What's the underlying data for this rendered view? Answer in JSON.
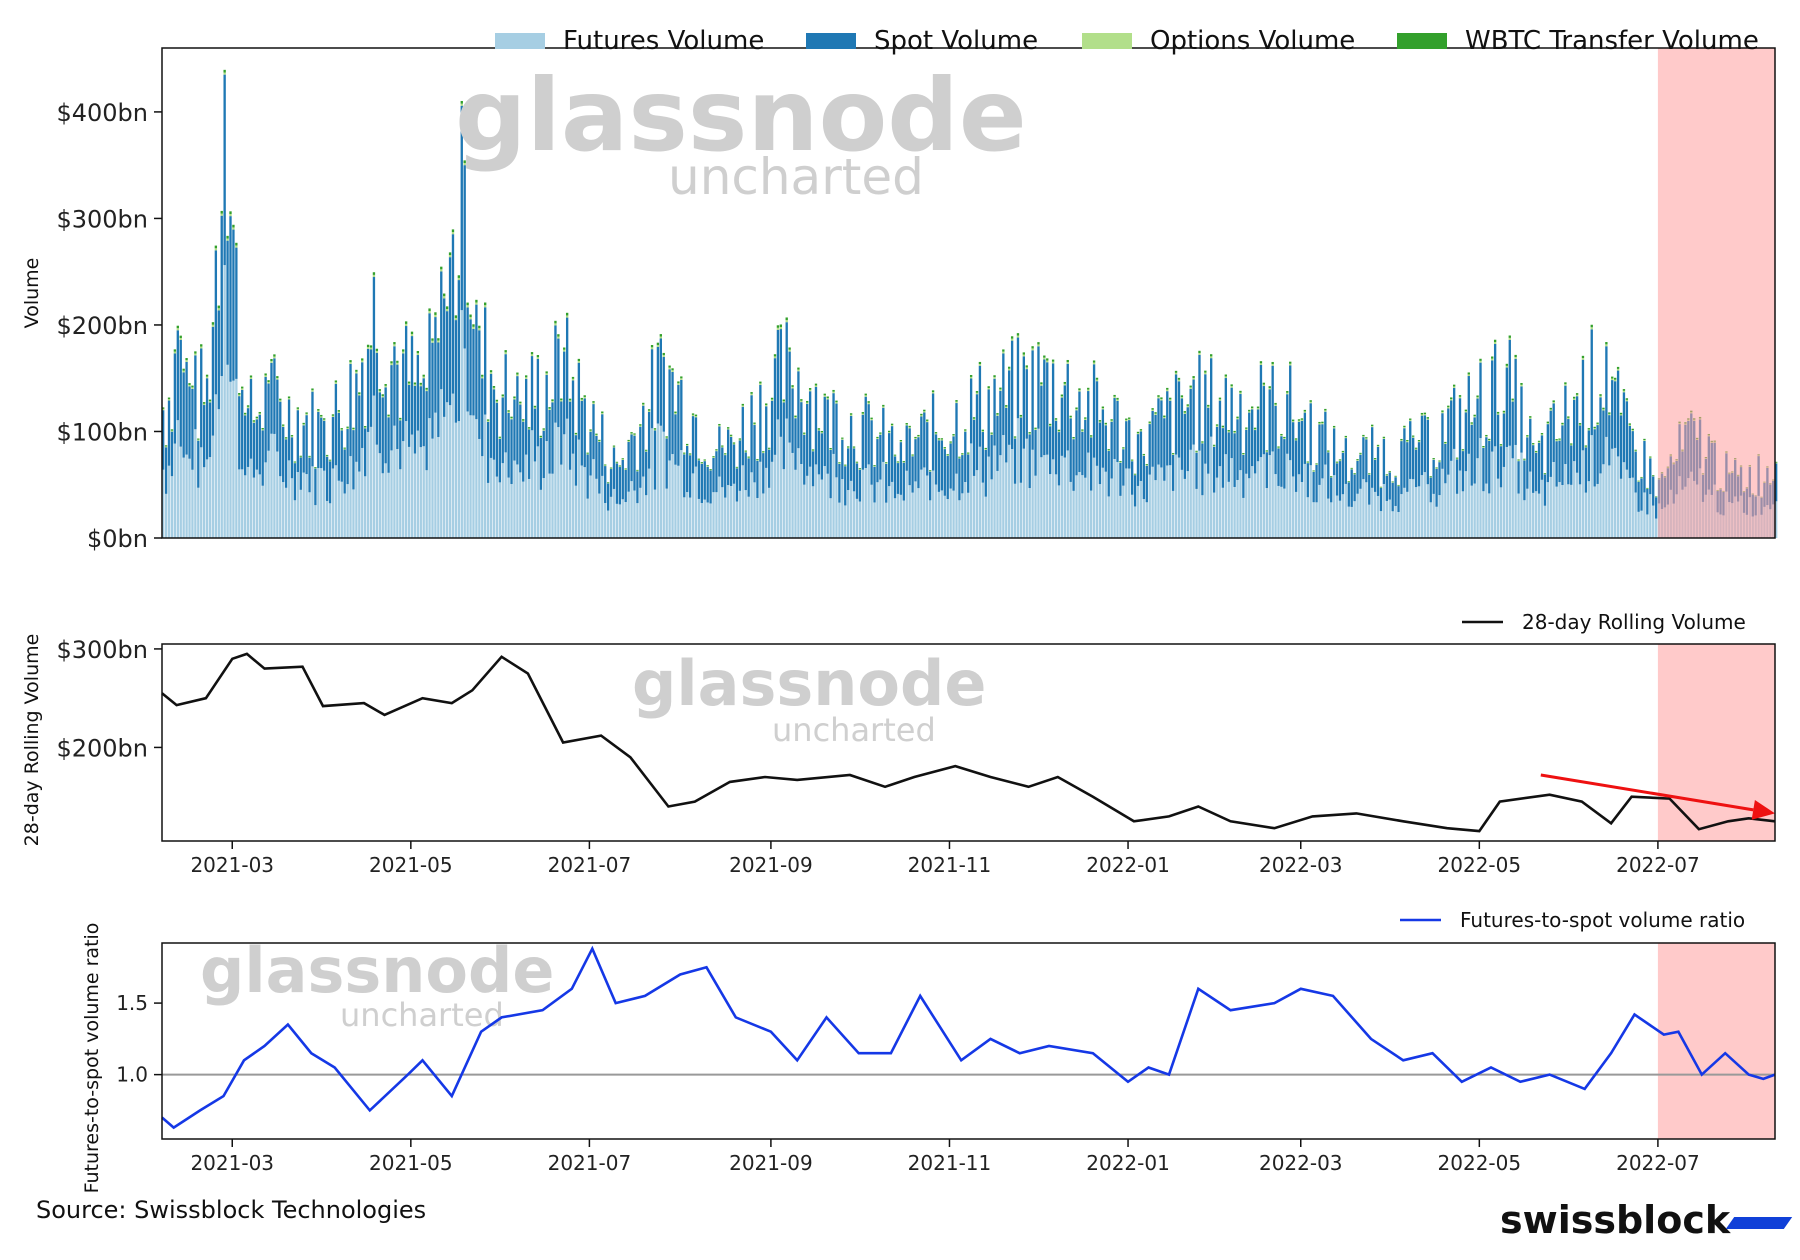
{
  "chart_data": [
    {
      "type": "bar",
      "stacked": true,
      "ylabel": "Volume",
      "yticks": [
        "$0bn",
        "$100bn",
        "$200bn",
        "$300bn",
        "$400bn"
      ],
      "ytick_values": [
        0,
        100,
        200,
        300,
        400
      ],
      "ylim": [
        0,
        460
      ],
      "xlim": [
        "2021-02-05",
        "2022-08-10"
      ],
      "legend_position": "top-right",
      "series": [
        {
          "name": "Futures Volume",
          "color": "#a6cee3"
        },
        {
          "name": "Spot Volume",
          "color": "#1f78b4"
        },
        {
          "name": "Options Volume",
          "color": "#b2df8a"
        },
        {
          "name": "WBTC Transfer Volume",
          "color": "#33a02c"
        }
      ],
      "total_volume_points": [
        {
          "x": "2021-02-05",
          "y": 120
        },
        {
          "x": "2021-02-10",
          "y": 195
        },
        {
          "x": "2021-02-15",
          "y": 140
        },
        {
          "x": "2021-02-20",
          "y": 150
        },
        {
          "x": "2021-02-23",
          "y": 270
        },
        {
          "x": "2021-02-26",
          "y": 435
        },
        {
          "x": "2021-03-05",
          "y": 115
        },
        {
          "x": "2021-03-13",
          "y": 145
        },
        {
          "x": "2021-03-20",
          "y": 130
        },
        {
          "x": "2021-04-01",
          "y": 110
        },
        {
          "x": "2021-04-14",
          "y": 165
        },
        {
          "x": "2021-04-18",
          "y": 245
        },
        {
          "x": "2021-04-25",
          "y": 180
        },
        {
          "x": "2021-05-05",
          "y": 150
        },
        {
          "x": "2021-05-12",
          "y": 225
        },
        {
          "x": "2021-05-19",
          "y": 350
        },
        {
          "x": "2021-05-24",
          "y": 195
        },
        {
          "x": "2021-06-05",
          "y": 130
        },
        {
          "x": "2021-06-22",
          "y": 175
        },
        {
          "x": "2021-07-10",
          "y": 70
        },
        {
          "x": "2021-07-26",
          "y": 170
        },
        {
          "x": "2021-08-15",
          "y": 85
        },
        {
          "x": "2021-09-07",
          "y": 175
        },
        {
          "x": "2021-09-20",
          "y": 130
        },
        {
          "x": "2021-10-15",
          "y": 90
        },
        {
          "x": "2021-11-10",
          "y": 135
        },
        {
          "x": "2021-12-04",
          "y": 165
        },
        {
          "x": "2022-01-05",
          "y": 100
        },
        {
          "x": "2022-01-22",
          "y": 140
        },
        {
          "x": "2022-02-24",
          "y": 135
        },
        {
          "x": "2022-03-15",
          "y": 80
        },
        {
          "x": "2022-04-10",
          "y": 90
        },
        {
          "x": "2022-05-10",
          "y": 160
        },
        {
          "x": "2022-05-20",
          "y": 80
        },
        {
          "x": "2022-06-13",
          "y": 180
        },
        {
          "x": "2022-06-18",
          "y": 115
        },
        {
          "x": "2022-07-01",
          "y": 55
        },
        {
          "x": "2022-07-13",
          "y": 110
        },
        {
          "x": "2022-07-25",
          "y": 60
        },
        {
          "x": "2022-08-10",
          "y": 70
        }
      ]
    },
    {
      "type": "line",
      "ylabel": "28-day Rolling Volume",
      "yticks": [
        "$200bn",
        "$300bn"
      ],
      "ytick_values": [
        200,
        300
      ],
      "ylim": [
        105,
        305
      ],
      "xlim": [
        "2021-02-05",
        "2022-08-10"
      ],
      "xticks": [
        "2021-03",
        "2021-05",
        "2021-07",
        "2021-09",
        "2021-11",
        "2022-01",
        "2022-03",
        "2022-05",
        "2022-07"
      ],
      "legend_position": "top-right",
      "series": [
        {
          "name": "28-day Rolling Volume",
          "color": "#111111",
          "points": [
            {
              "x": "2021-02-05",
              "y": 255
            },
            {
              "x": "2021-02-10",
              "y": 243
            },
            {
              "x": "2021-02-20",
              "y": 250
            },
            {
              "x": "2021-03-01",
              "y": 290
            },
            {
              "x": "2021-03-06",
              "y": 295
            },
            {
              "x": "2021-03-12",
              "y": 280
            },
            {
              "x": "2021-03-25",
              "y": 282
            },
            {
              "x": "2021-04-01",
              "y": 242
            },
            {
              "x": "2021-04-15",
              "y": 245
            },
            {
              "x": "2021-04-22",
              "y": 233
            },
            {
              "x": "2021-05-05",
              "y": 250
            },
            {
              "x": "2021-05-15",
              "y": 245
            },
            {
              "x": "2021-05-22",
              "y": 258
            },
            {
              "x": "2021-06-01",
              "y": 292
            },
            {
              "x": "2021-06-10",
              "y": 275
            },
            {
              "x": "2021-06-22",
              "y": 205
            },
            {
              "x": "2021-07-05",
              "y": 212
            },
            {
              "x": "2021-07-15",
              "y": 190
            },
            {
              "x": "2021-07-28",
              "y": 140
            },
            {
              "x": "2021-08-06",
              "y": 145
            },
            {
              "x": "2021-08-18",
              "y": 165
            },
            {
              "x": "2021-08-30",
              "y": 170
            },
            {
              "x": "2021-09-10",
              "y": 167
            },
            {
              "x": "2021-09-28",
              "y": 172
            },
            {
              "x": "2021-10-10",
              "y": 160
            },
            {
              "x": "2021-10-20",
              "y": 170
            },
            {
              "x": "2021-11-03",
              "y": 181
            },
            {
              "x": "2021-11-15",
              "y": 170
            },
            {
              "x": "2021-11-28",
              "y": 160
            },
            {
              "x": "2021-12-08",
              "y": 170
            },
            {
              "x": "2021-12-20",
              "y": 150
            },
            {
              "x": "2022-01-03",
              "y": 125
            },
            {
              "x": "2022-01-15",
              "y": 130
            },
            {
              "x": "2022-01-25",
              "y": 140
            },
            {
              "x": "2022-02-05",
              "y": 125
            },
            {
              "x": "2022-02-20",
              "y": 118
            },
            {
              "x": "2022-03-05",
              "y": 130
            },
            {
              "x": "2022-03-20",
              "y": 133
            },
            {
              "x": "2022-04-05",
              "y": 125
            },
            {
              "x": "2022-04-20",
              "y": 118
            },
            {
              "x": "2022-05-01",
              "y": 115
            },
            {
              "x": "2022-05-08",
              "y": 145
            },
            {
              "x": "2022-05-25",
              "y": 152
            },
            {
              "x": "2022-06-05",
              "y": 145
            },
            {
              "x": "2022-06-15",
              "y": 123
            },
            {
              "x": "2022-06-22",
              "y": 150
            },
            {
              "x": "2022-07-05",
              "y": 148
            },
            {
              "x": "2022-07-15",
              "y": 117
            },
            {
              "x": "2022-07-25",
              "y": 125
            },
            {
              "x": "2022-08-01",
              "y": 128
            },
            {
              "x": "2022-08-10",
              "y": 125
            }
          ]
        }
      ],
      "annotation": {
        "type": "arrow",
        "color": "#ee1111",
        "from": {
          "x": "2022-05-22",
          "y": 172
        },
        "to": {
          "x": "2022-08-10",
          "y": 133
        }
      }
    },
    {
      "type": "line",
      "ylabel": "Futures-to-spot volume ratio",
      "yticks": [
        "1.0",
        "1.5"
      ],
      "ytick_values": [
        1.0,
        1.5
      ],
      "ylim": [
        0.55,
        1.92
      ],
      "xlim": [
        "2021-02-05",
        "2022-08-10"
      ],
      "xticks": [
        "2021-03",
        "2021-05",
        "2021-07",
        "2021-09",
        "2021-11",
        "2022-01",
        "2022-03",
        "2022-05",
        "2022-07"
      ],
      "legend_position": "top-right",
      "reference_line": {
        "y": 1.0,
        "color": "#999999"
      },
      "series": [
        {
          "name": "Futures-to-spot volume ratio",
          "color": "#1538e6",
          "points": [
            {
              "x": "2021-02-05",
              "y": 0.7
            },
            {
              "x": "2021-02-09",
              "y": 0.63
            },
            {
              "x": "2021-02-18",
              "y": 0.75
            },
            {
              "x": "2021-02-26",
              "y": 0.85
            },
            {
              "x": "2021-03-05",
              "y": 1.1
            },
            {
              "x": "2021-03-12",
              "y": 1.2
            },
            {
              "x": "2021-03-20",
              "y": 1.35
            },
            {
              "x": "2021-03-28",
              "y": 1.15
            },
            {
              "x": "2021-04-05",
              "y": 1.05
            },
            {
              "x": "2021-04-17",
              "y": 0.75
            },
            {
              "x": "2021-04-30",
              "y": 1.0
            },
            {
              "x": "2021-05-05",
              "y": 1.1
            },
            {
              "x": "2021-05-15",
              "y": 0.85
            },
            {
              "x": "2021-05-25",
              "y": 1.3
            },
            {
              "x": "2021-06-01",
              "y": 1.4
            },
            {
              "x": "2021-06-15",
              "y": 1.45
            },
            {
              "x": "2021-06-25",
              "y": 1.6
            },
            {
              "x": "2021-07-02",
              "y": 1.88
            },
            {
              "x": "2021-07-10",
              "y": 1.5
            },
            {
              "x": "2021-07-20",
              "y": 1.55
            },
            {
              "x": "2021-08-01",
              "y": 1.7
            },
            {
              "x": "2021-08-10",
              "y": 1.75
            },
            {
              "x": "2021-08-20",
              "y": 1.4
            },
            {
              "x": "2021-09-01",
              "y": 1.3
            },
            {
              "x": "2021-09-10",
              "y": 1.1
            },
            {
              "x": "2021-09-20",
              "y": 1.4
            },
            {
              "x": "2021-10-01",
              "y": 1.15
            },
            {
              "x": "2021-10-12",
              "y": 1.15
            },
            {
              "x": "2021-10-22",
              "y": 1.55
            },
            {
              "x": "2021-11-05",
              "y": 1.1
            },
            {
              "x": "2021-11-15",
              "y": 1.25
            },
            {
              "x": "2021-11-25",
              "y": 1.15
            },
            {
              "x": "2021-12-05",
              "y": 1.2
            },
            {
              "x": "2021-12-20",
              "y": 1.15
            },
            {
              "x": "2022-01-01",
              "y": 0.95
            },
            {
              "x": "2022-01-08",
              "y": 1.05
            },
            {
              "x": "2022-01-15",
              "y": 1.0
            },
            {
              "x": "2022-01-25",
              "y": 1.6
            },
            {
              "x": "2022-02-05",
              "y": 1.45
            },
            {
              "x": "2022-02-20",
              "y": 1.5
            },
            {
              "x": "2022-03-01",
              "y": 1.6
            },
            {
              "x": "2022-03-12",
              "y": 1.55
            },
            {
              "x": "2022-03-25",
              "y": 1.25
            },
            {
              "x": "2022-04-05",
              "y": 1.1
            },
            {
              "x": "2022-04-15",
              "y": 1.15
            },
            {
              "x": "2022-04-25",
              "y": 0.95
            },
            {
              "x": "2022-05-05",
              "y": 1.05
            },
            {
              "x": "2022-05-15",
              "y": 0.95
            },
            {
              "x": "2022-05-25",
              "y": 1.0
            },
            {
              "x": "2022-06-06",
              "y": 0.9
            },
            {
              "x": "2022-06-15",
              "y": 1.15
            },
            {
              "x": "2022-06-23",
              "y": 1.42
            },
            {
              "x": "2022-07-03",
              "y": 1.28
            },
            {
              "x": "2022-07-08",
              "y": 1.3
            },
            {
              "x": "2022-07-16",
              "y": 1.0
            },
            {
              "x": "2022-07-24",
              "y": 1.15
            },
            {
              "x": "2022-08-01",
              "y": 1.0
            },
            {
              "x": "2022-08-06",
              "y": 0.97
            },
            {
              "x": "2022-08-10",
              "y": 1.0
            }
          ]
        }
      ]
    }
  ],
  "highlight_range": {
    "from": "2022-07-01",
    "to": "2022-08-10",
    "color": "#ff9f9f"
  },
  "watermark": {
    "main": "glassnode",
    "sub": "uncharted"
  },
  "source_text": "Source: Swissblock Technologies",
  "brand_text": "swissblock"
}
